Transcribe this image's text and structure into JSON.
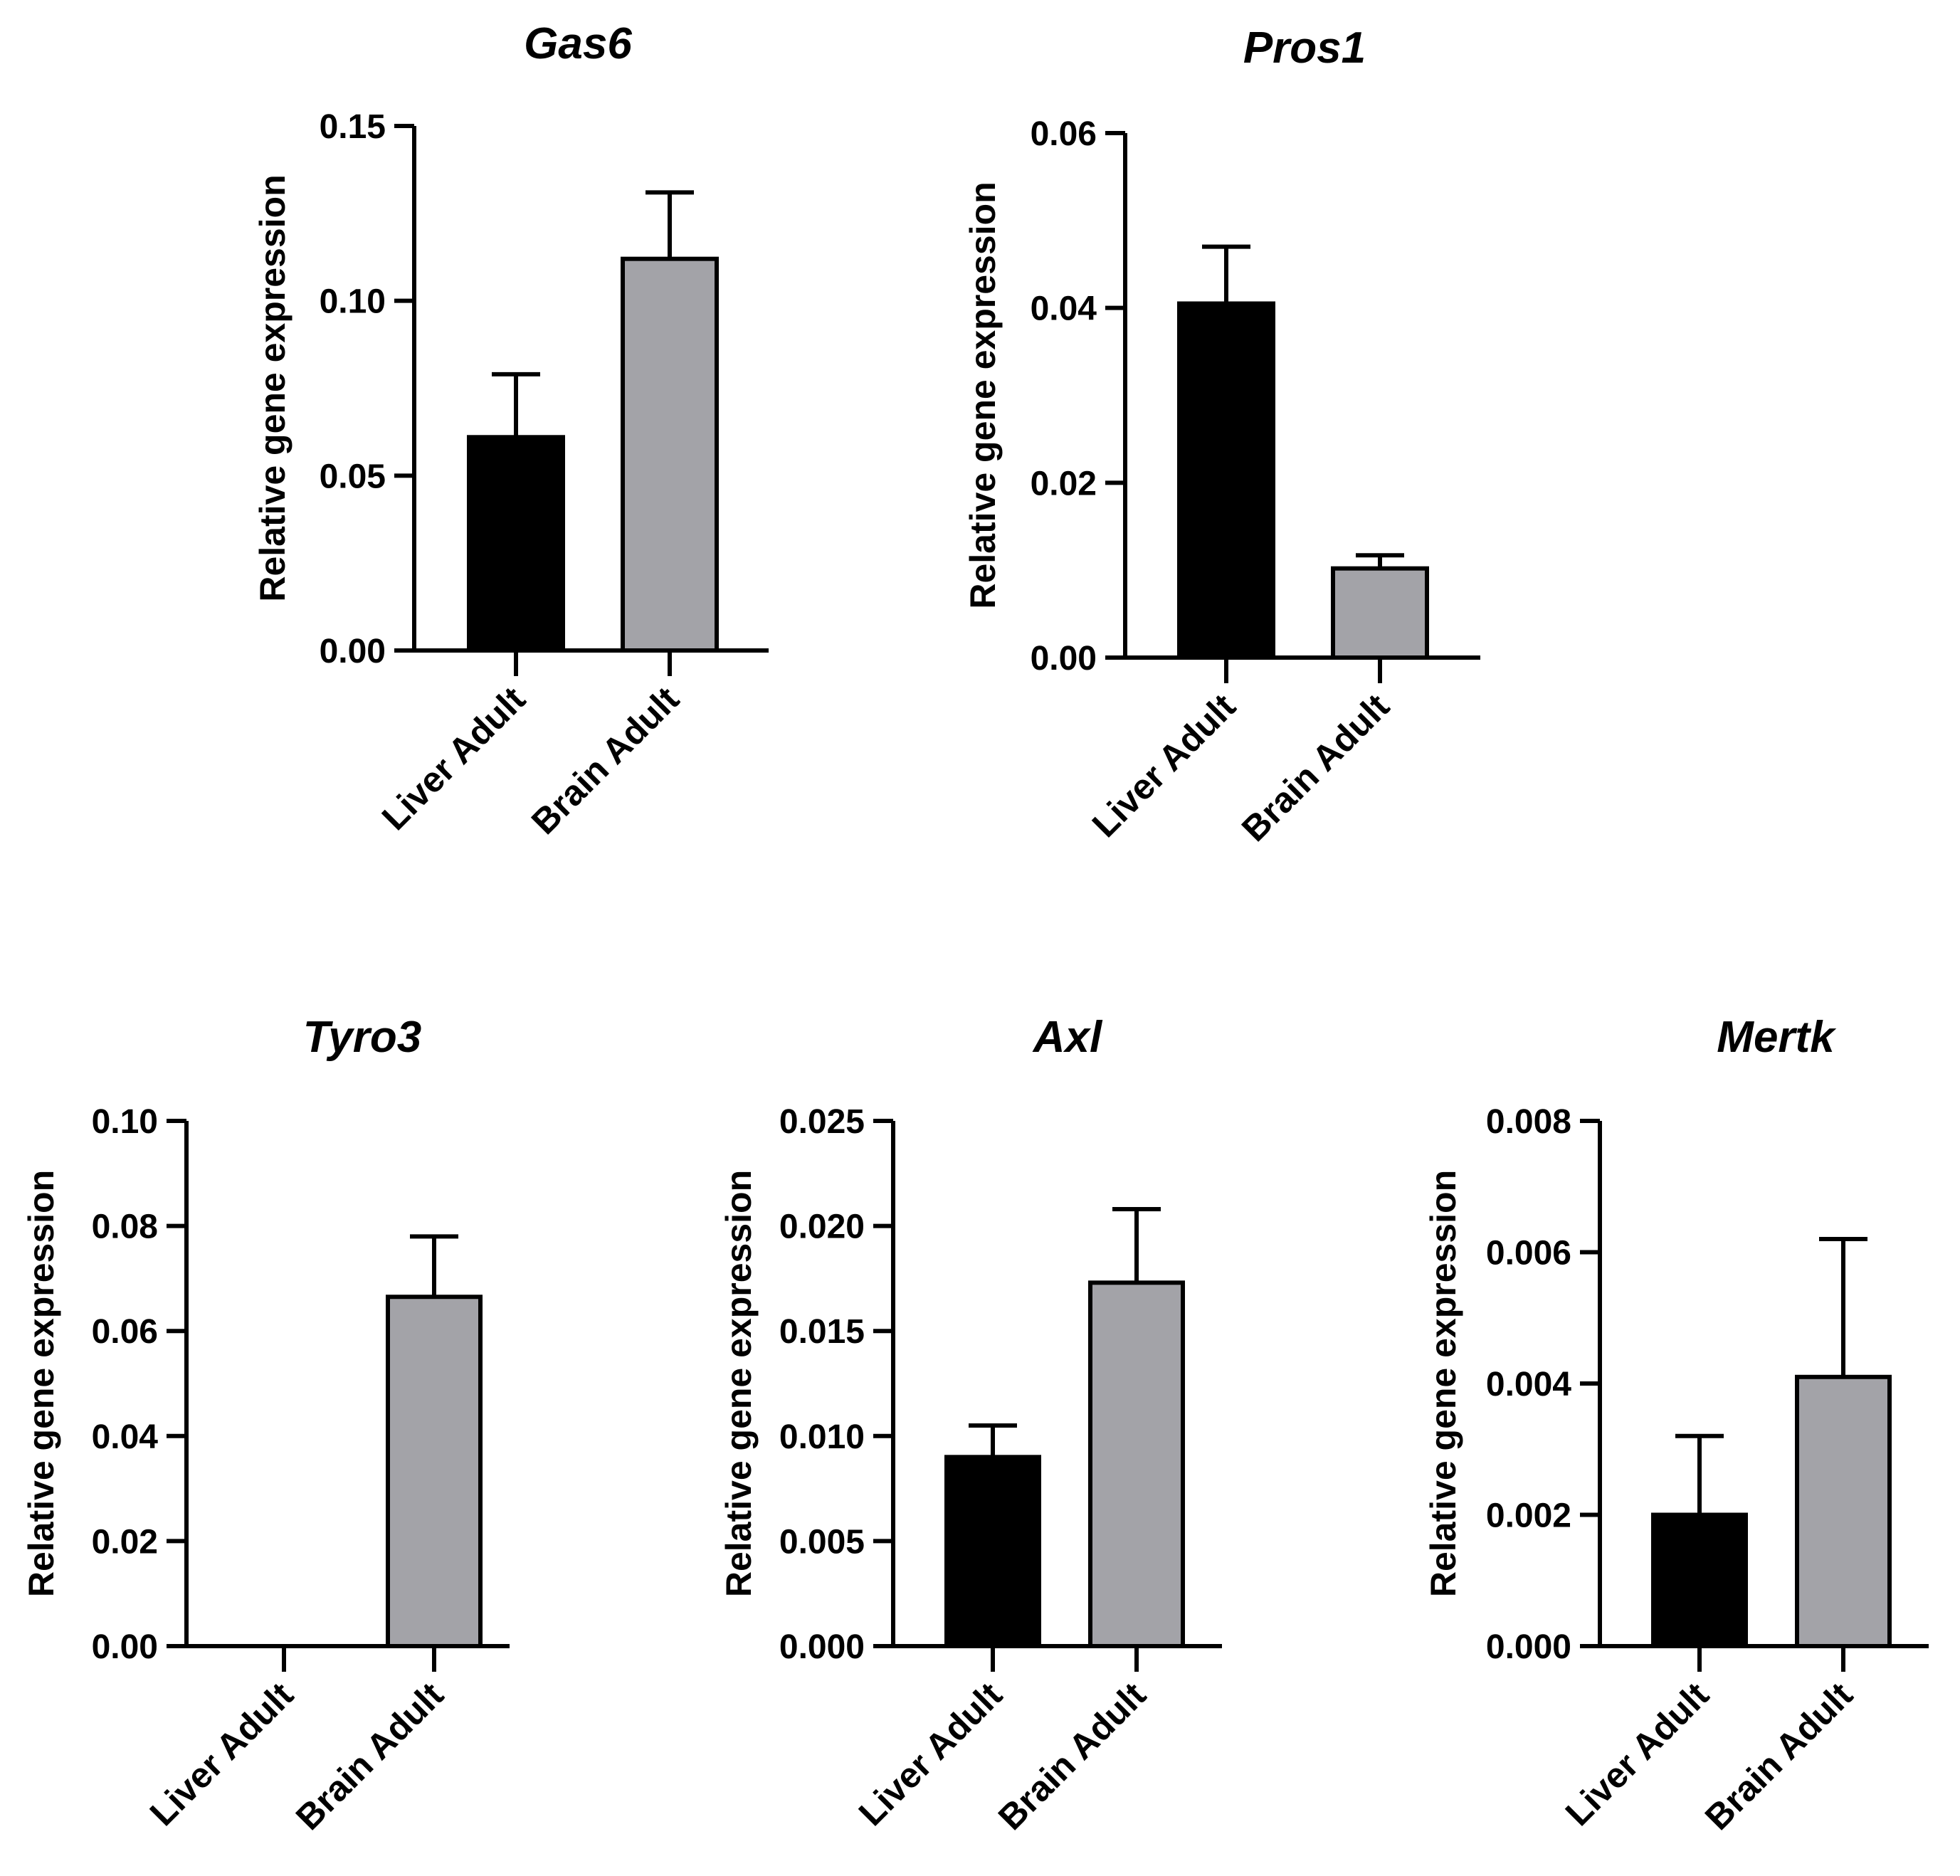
{
  "chart_data": [
    {
      "type": "bar",
      "title": "Gas6",
      "ylabel": "Relative gene expression",
      "categories": [
        "Liver Adult",
        "Brain Adult"
      ],
      "values": [
        0.061,
        0.112
      ],
      "errors": [
        0.018,
        0.019
      ],
      "ylim": [
        0,
        0.15
      ],
      "yticks": [
        "0.00",
        "0.05",
        "0.10",
        "0.15"
      ],
      "colors": [
        "#000000",
        "#a3a3a8"
      ]
    },
    {
      "type": "bar",
      "title": "Pros1",
      "ylabel": "Relative gene expression",
      "categories": [
        "Liver Adult",
        "Brain Adult"
      ],
      "values": [
        0.0405,
        0.0102
      ],
      "errors": [
        0.0065,
        0.0015
      ],
      "ylim": [
        0,
        0.06
      ],
      "yticks": [
        "0.00",
        "0.02",
        "0.04",
        "0.06"
      ],
      "colors": [
        "#000000",
        "#a3a3a8"
      ]
    },
    {
      "type": "bar",
      "title": "Tyro3",
      "ylabel": "Relative gene expression",
      "categories": [
        "Liver Adult",
        "Brain Adult"
      ],
      "values": [
        0,
        0.0665
      ],
      "errors": [
        0,
        0.0115
      ],
      "ylim": [
        0,
        0.1
      ],
      "yticks": [
        "0.00",
        "0.02",
        "0.04",
        "0.06",
        "0.08",
        "0.10"
      ],
      "colors": [
        "#000000",
        "#a3a3a8"
      ]
    },
    {
      "type": "bar",
      "title": "Axl",
      "ylabel": "Relative gene expression",
      "categories": [
        "Liver Adult",
        "Brain Adult"
      ],
      "values": [
        0.009,
        0.0173
      ],
      "errors": [
        0.0015,
        0.0035
      ],
      "ylim": [
        0,
        0.025
      ],
      "yticks": [
        "0.000",
        "0.005",
        "0.010",
        "0.015",
        "0.020",
        "0.025"
      ],
      "colors": [
        "#000000",
        "#a3a3a8"
      ]
    },
    {
      "type": "bar",
      "title": "Mertk",
      "ylabel": "Relative gene expression",
      "categories": [
        "Liver Adult",
        "Brain Adult"
      ],
      "values": [
        0.002,
        0.0041
      ],
      "errors": [
        0.0012,
        0.0021
      ],
      "ylim": [
        0,
        0.008
      ],
      "yticks": [
        "0.000",
        "0.002",
        "0.004",
        "0.006",
        "0.008"
      ],
      "colors": [
        "#000000",
        "#a3a3a8"
      ]
    }
  ]
}
